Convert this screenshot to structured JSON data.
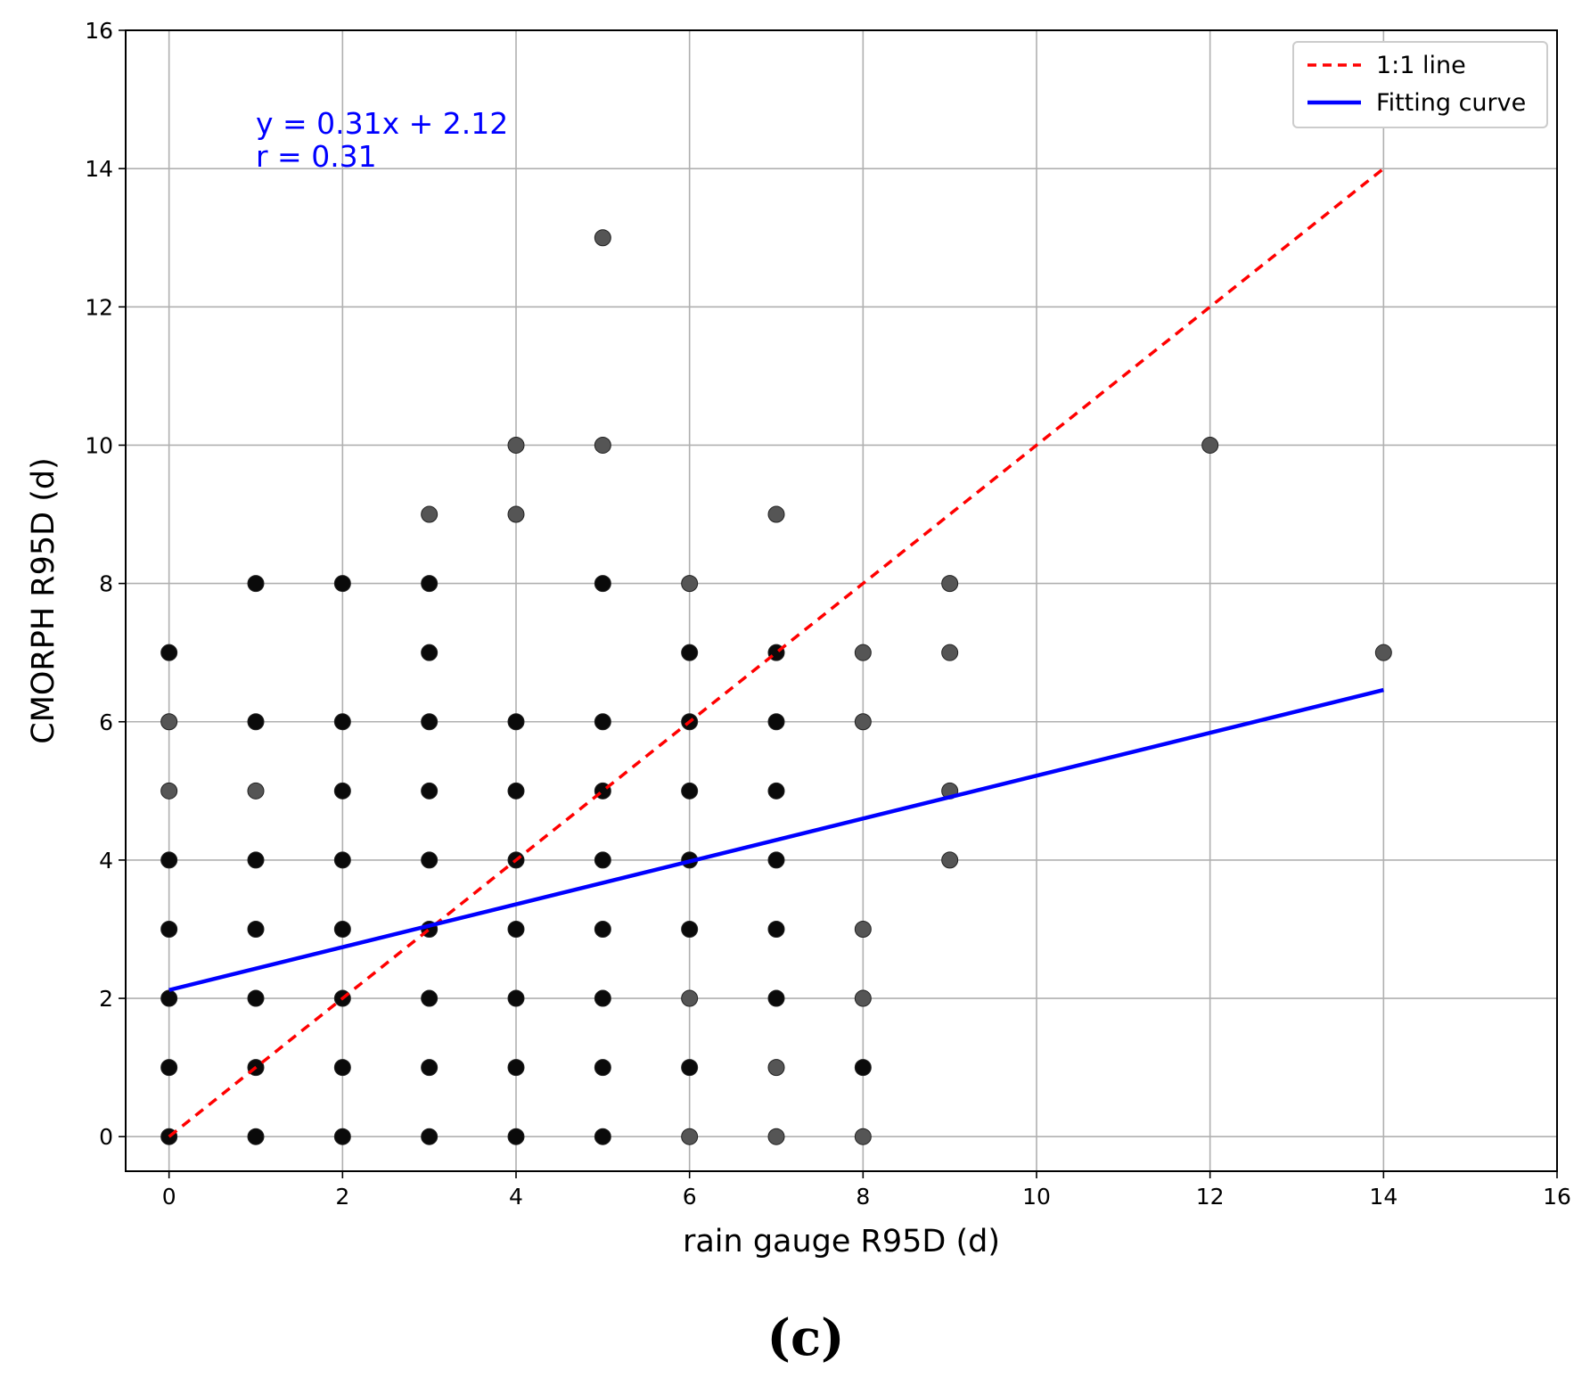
{
  "chart_data": {
    "type": "scatter",
    "title": "",
    "xlabel": "rain gauge R95D (d)",
    "ylabel": "CMORPH R95D (d)",
    "xlim": [
      -0.5,
      16
    ],
    "ylim": [
      -0.5,
      16
    ],
    "xticks": [
      0,
      2,
      4,
      6,
      8,
      10,
      12,
      14,
      16
    ],
    "yticks": [
      0,
      2,
      4,
      6,
      8,
      10,
      12,
      14,
      16
    ],
    "grid": true,
    "legend_position": "top-right",
    "legend": [
      {
        "label": "1:1 line",
        "color": "#ff0000",
        "style": "dashed"
      },
      {
        "label": "Fitting curve",
        "color": "#0000ff",
        "style": "solid"
      }
    ],
    "annotation": {
      "line1": "y = 0.31x + 2.12",
      "line2": "r = 0.31",
      "color": "#0000ff"
    },
    "one_to_one_line": {
      "x": [
        0,
        14
      ],
      "y": [
        0,
        14
      ],
      "color": "#ff0000"
    },
    "fit_line": {
      "slope": 0.31,
      "intercept": 2.12,
      "x": [
        0,
        14
      ],
      "color": "#0000ff"
    },
    "points": [
      {
        "x": 0,
        "y": 0,
        "shade": "dark"
      },
      {
        "x": 0,
        "y": 1,
        "shade": "dark"
      },
      {
        "x": 0,
        "y": 2,
        "shade": "dark"
      },
      {
        "x": 0,
        "y": 3,
        "shade": "dark"
      },
      {
        "x": 0,
        "y": 4,
        "shade": "dark"
      },
      {
        "x": 0,
        "y": 5,
        "shade": "light"
      },
      {
        "x": 0,
        "y": 6,
        "shade": "light"
      },
      {
        "x": 0,
        "y": 7,
        "shade": "dark"
      },
      {
        "x": 1,
        "y": 0,
        "shade": "dark"
      },
      {
        "x": 1,
        "y": 1,
        "shade": "dark"
      },
      {
        "x": 1,
        "y": 2,
        "shade": "dark"
      },
      {
        "x": 1,
        "y": 3,
        "shade": "dark"
      },
      {
        "x": 1,
        "y": 4,
        "shade": "dark"
      },
      {
        "x": 1,
        "y": 5,
        "shade": "light"
      },
      {
        "x": 1,
        "y": 6,
        "shade": "dark"
      },
      {
        "x": 1,
        "y": 8,
        "shade": "dark"
      },
      {
        "x": 2,
        "y": 0,
        "shade": "dark"
      },
      {
        "x": 2,
        "y": 1,
        "shade": "dark"
      },
      {
        "x": 2,
        "y": 2,
        "shade": "dark"
      },
      {
        "x": 2,
        "y": 3,
        "shade": "dark"
      },
      {
        "x": 2,
        "y": 4,
        "shade": "dark"
      },
      {
        "x": 2,
        "y": 5,
        "shade": "dark"
      },
      {
        "x": 2,
        "y": 6,
        "shade": "dark"
      },
      {
        "x": 2,
        "y": 8,
        "shade": "dark"
      },
      {
        "x": 3,
        "y": 0,
        "shade": "dark"
      },
      {
        "x": 3,
        "y": 1,
        "shade": "dark"
      },
      {
        "x": 3,
        "y": 2,
        "shade": "dark"
      },
      {
        "x": 3,
        "y": 3,
        "shade": "dark"
      },
      {
        "x": 3,
        "y": 4,
        "shade": "dark"
      },
      {
        "x": 3,
        "y": 5,
        "shade": "dark"
      },
      {
        "x": 3,
        "y": 6,
        "shade": "dark"
      },
      {
        "x": 3,
        "y": 7,
        "shade": "dark"
      },
      {
        "x": 3,
        "y": 8,
        "shade": "dark"
      },
      {
        "x": 3,
        "y": 9,
        "shade": "light"
      },
      {
        "x": 4,
        "y": 0,
        "shade": "dark"
      },
      {
        "x": 4,
        "y": 1,
        "shade": "dark"
      },
      {
        "x": 4,
        "y": 2,
        "shade": "dark"
      },
      {
        "x": 4,
        "y": 3,
        "shade": "dark"
      },
      {
        "x": 4,
        "y": 4,
        "shade": "dark"
      },
      {
        "x": 4,
        "y": 5,
        "shade": "dark"
      },
      {
        "x": 4,
        "y": 6,
        "shade": "dark"
      },
      {
        "x": 4,
        "y": 9,
        "shade": "light"
      },
      {
        "x": 4,
        "y": 10,
        "shade": "light"
      },
      {
        "x": 5,
        "y": 0,
        "shade": "dark"
      },
      {
        "x": 5,
        "y": 1,
        "shade": "dark"
      },
      {
        "x": 5,
        "y": 2,
        "shade": "dark"
      },
      {
        "x": 5,
        "y": 3,
        "shade": "dark"
      },
      {
        "x": 5,
        "y": 4,
        "shade": "dark"
      },
      {
        "x": 5,
        "y": 5,
        "shade": "dark"
      },
      {
        "x": 5,
        "y": 6,
        "shade": "dark"
      },
      {
        "x": 5,
        "y": 8,
        "shade": "dark"
      },
      {
        "x": 5,
        "y": 10,
        "shade": "light"
      },
      {
        "x": 5,
        "y": 13,
        "shade": "light"
      },
      {
        "x": 6,
        "y": 0,
        "shade": "light"
      },
      {
        "x": 6,
        "y": 1,
        "shade": "dark"
      },
      {
        "x": 6,
        "y": 2,
        "shade": "light"
      },
      {
        "x": 6,
        "y": 3,
        "shade": "dark"
      },
      {
        "x": 6,
        "y": 4,
        "shade": "dark"
      },
      {
        "x": 6,
        "y": 5,
        "shade": "dark"
      },
      {
        "x": 6,
        "y": 6,
        "shade": "dark"
      },
      {
        "x": 6,
        "y": 7,
        "shade": "dark"
      },
      {
        "x": 6,
        "y": 8,
        "shade": "light"
      },
      {
        "x": 7,
        "y": 0,
        "shade": "light"
      },
      {
        "x": 7,
        "y": 1,
        "shade": "light"
      },
      {
        "x": 7,
        "y": 2,
        "shade": "dark"
      },
      {
        "x": 7,
        "y": 3,
        "shade": "dark"
      },
      {
        "x": 7,
        "y": 4,
        "shade": "dark"
      },
      {
        "x": 7,
        "y": 5,
        "shade": "dark"
      },
      {
        "x": 7,
        "y": 6,
        "shade": "dark"
      },
      {
        "x": 7,
        "y": 7,
        "shade": "dark"
      },
      {
        "x": 7,
        "y": 9,
        "shade": "light"
      },
      {
        "x": 8,
        "y": 0,
        "shade": "light"
      },
      {
        "x": 8,
        "y": 1,
        "shade": "dark"
      },
      {
        "x": 8,
        "y": 2,
        "shade": "light"
      },
      {
        "x": 8,
        "y": 3,
        "shade": "light"
      },
      {
        "x": 8,
        "y": 6,
        "shade": "light"
      },
      {
        "x": 8,
        "y": 7,
        "shade": "light"
      },
      {
        "x": 9,
        "y": 4,
        "shade": "light"
      },
      {
        "x": 9,
        "y": 5,
        "shade": "light"
      },
      {
        "x": 9,
        "y": 7,
        "shade": "light"
      },
      {
        "x": 9,
        "y": 8,
        "shade": "light"
      },
      {
        "x": 12,
        "y": 10,
        "shade": "light"
      },
      {
        "x": 14,
        "y": 7,
        "shade": "light"
      }
    ]
  },
  "caption": "(c)"
}
